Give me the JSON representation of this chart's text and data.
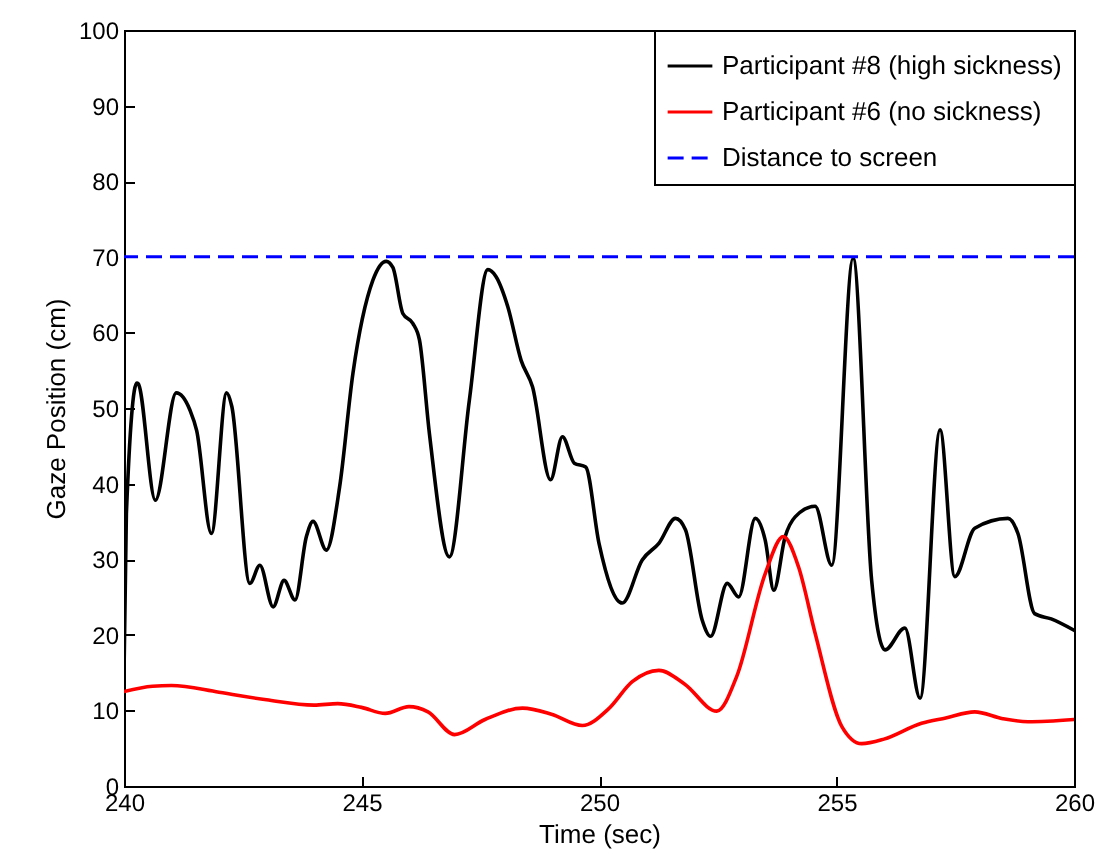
{
  "chart_data": {
    "type": "line",
    "xlabel": "Time (sec)",
    "ylabel": "Gaze Position (cm)",
    "xlim": [
      240,
      260
    ],
    "xticks": [
      240,
      245,
      250,
      255,
      260
    ],
    "ylim": [
      0,
      100
    ],
    "yticks": [
      0,
      10,
      20,
      30,
      40,
      50,
      60,
      70,
      80,
      90,
      100
    ],
    "grid": false,
    "legend": "top right",
    "line_style": "solid",
    "series": [
      {
        "name": "Participant #8 (high sickness)",
        "color": "#000000",
        "x": [
          240,
          240.05,
          240.27,
          240.3,
          240.66,
          241.1,
          241.39,
          241.53,
          241.84,
          242.16,
          242.27,
          242.65,
          242.86,
          243.14,
          243.37,
          243.6,
          243.84,
          243.98,
          244.26,
          244.54,
          244.82,
          245.24,
          245.52,
          245.66,
          245.87,
          246.08,
          246.22,
          246.43,
          246.85,
          247.27,
          247.66,
          247.83,
          248.08,
          248.36,
          248.6,
          248.98,
          249.23,
          249.48,
          249.72,
          250,
          250.49,
          250.91,
          251.26,
          251.61,
          251.82,
          252.17,
          252.35,
          252.7,
          252.94,
          253.29,
          253.5,
          253.68,
          253.92,
          254.13,
          254.55,
          254.9,
          255.35,
          255.74,
          256.02,
          256.44,
          256.76,
          257.18,
          257.49,
          257.91,
          258.61,
          258.82,
          259.17,
          259.52,
          260
        ],
        "values": [
          14.9,
          36,
          53.3,
          53.2,
          37.8,
          52,
          49.7,
          47,
          33.4,
          52,
          50.2,
          26.8,
          29.2,
          23.7,
          27.2,
          24.6,
          33,
          35,
          31.2,
          39.6,
          54.6,
          66.9,
          69.4,
          68.6,
          62.5,
          61.2,
          59,
          46.6,
          30.3,
          51,
          68.3,
          67.4,
          63.4,
          56.3,
          52.8,
          40.5,
          46.2,
          42.7,
          42.2,
          32.1,
          24.2,
          29.9,
          32.1,
          35.4,
          33.9,
          22,
          19.8,
          26.8,
          25,
          35.4,
          32.5,
          25.9,
          33,
          35.6,
          37,
          29.2,
          69.8,
          27.2,
          18,
          20.9,
          11.6,
          47.1,
          27.7,
          34.1,
          35.4,
          33.4,
          22.8,
          22.1,
          20.6
        ]
      },
      {
        "name": "Participant #6 (no sickness)",
        "color": "#ff0000",
        "x": [
          240,
          240.6,
          241,
          242,
          243,
          244,
          244.5,
          245,
          245.5,
          246,
          246.4,
          246.96,
          247.6,
          248.39,
          249,
          249.65,
          250.2,
          250.7,
          251.26,
          251.8,
          252.48,
          252.9,
          253.5,
          253.88,
          254.2,
          254.55,
          255.11,
          255.53,
          256,
          256.79,
          257.3,
          257.91,
          258.5,
          259.03,
          260
        ],
        "values": [
          12.5,
          13.2,
          13.3,
          12.4,
          11.4,
          10.7,
          10.9,
          10.4,
          9.6,
          10.5,
          9.8,
          6.8,
          8.8,
          10.3,
          9.5,
          8,
          10.2,
          13.8,
          15.3,
          13.5,
          9.9,
          14.5,
          28.1,
          33,
          29,
          20.2,
          7.9,
          5.6,
          6.2,
          8.3,
          9,
          9.8,
          8.9,
          8.5,
          8.8
        ]
      }
    ],
    "ref_lines": [
      {
        "axis": "y",
        "value": 70,
        "label": "Distance to screen",
        "color": "#0000ff",
        "line_style": "dashed"
      }
    ]
  }
}
